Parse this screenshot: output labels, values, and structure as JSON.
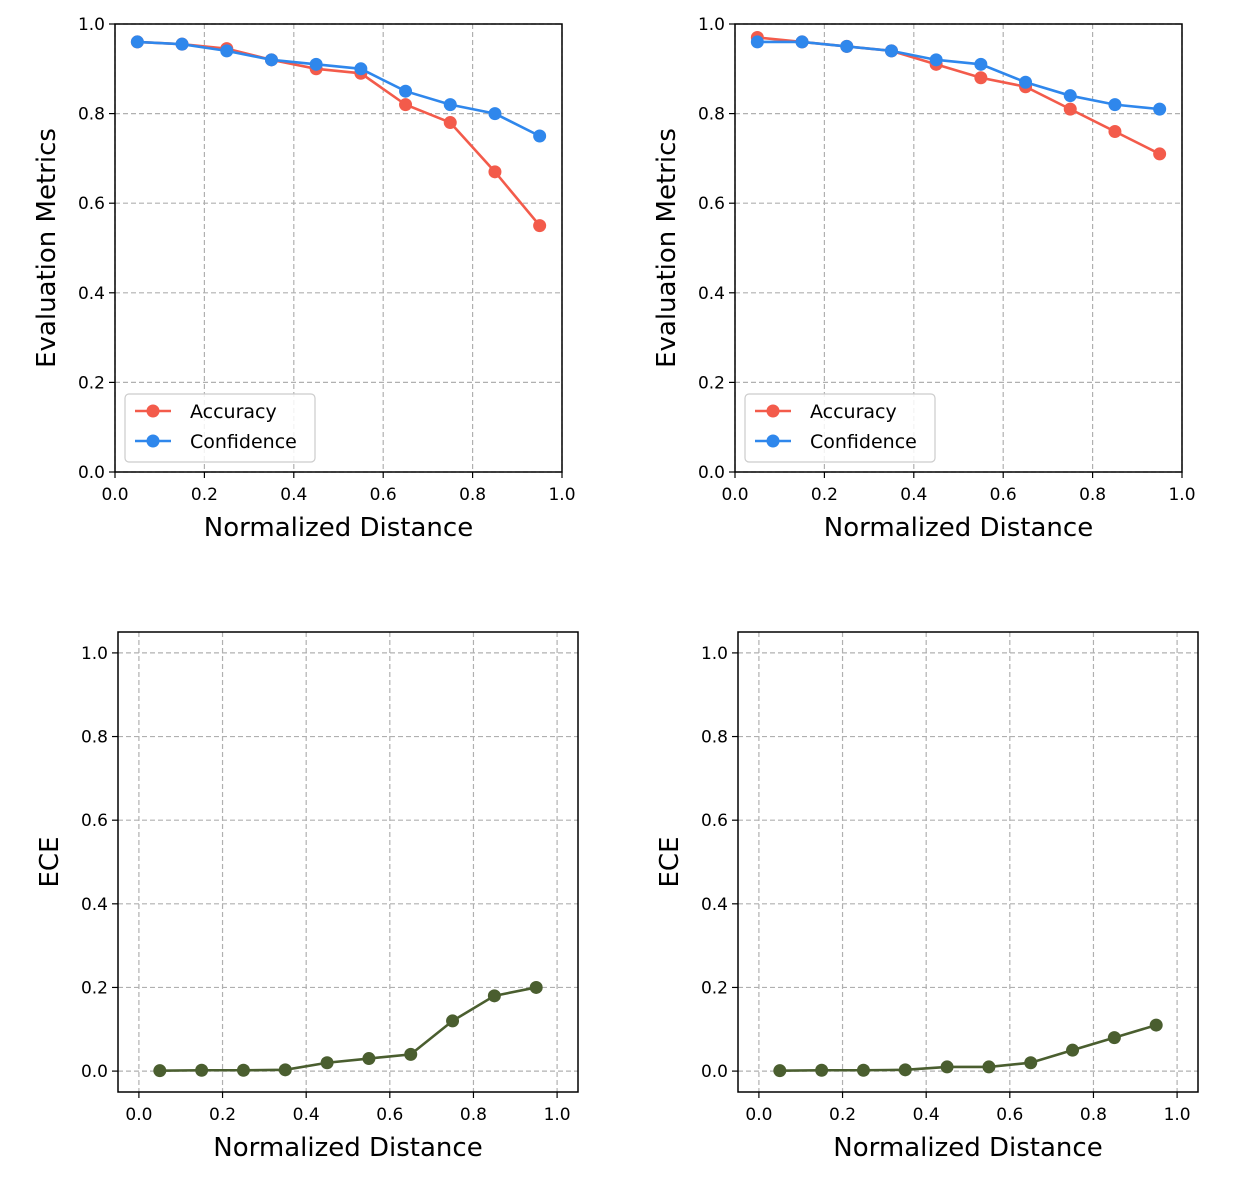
{
  "colors": {
    "accuracy": "#f35b4b",
    "confidence": "#2f87ec",
    "ece": "#4a5e2f",
    "grid": "#b0b0b0",
    "axis": "#000000"
  },
  "chart_data": [
    {
      "id": "top-left",
      "type": "line",
      "title": "",
      "xlabel": "Normalized Distance",
      "ylabel": "Evaluation Metrics",
      "xlim": [
        0.0,
        1.0
      ],
      "ylim": [
        0.0,
        1.0
      ],
      "xticks": [
        "0.0",
        "0.2",
        "0.4",
        "0.6",
        "0.8",
        "1.0"
      ],
      "yticks": [
        "0.0",
        "0.2",
        "0.4",
        "0.6",
        "0.8",
        "1.0"
      ],
      "grid": true,
      "legend_position": "lower-left",
      "x": [
        0.05,
        0.15,
        0.25,
        0.35,
        0.45,
        0.55,
        0.65,
        0.75,
        0.85,
        0.95
      ],
      "series": [
        {
          "name": "Accuracy",
          "color_key": "accuracy",
          "values": [
            0.96,
            0.955,
            0.945,
            0.92,
            0.9,
            0.89,
            0.82,
            0.78,
            0.67,
            0.55
          ]
        },
        {
          "name": "Confidence",
          "color_key": "confidence",
          "values": [
            0.96,
            0.955,
            0.94,
            0.92,
            0.91,
            0.9,
            0.85,
            0.82,
            0.8,
            0.75
          ]
        }
      ]
    },
    {
      "id": "top-right",
      "type": "line",
      "title": "",
      "xlabel": "Normalized Distance",
      "ylabel": "Evaluation Metrics",
      "xlim": [
        0.0,
        1.0
      ],
      "ylim": [
        0.0,
        1.0
      ],
      "xticks": [
        "0.0",
        "0.2",
        "0.4",
        "0.6",
        "0.8",
        "1.0"
      ],
      "yticks": [
        "0.0",
        "0.2",
        "0.4",
        "0.6",
        "0.8",
        "1.0"
      ],
      "grid": true,
      "legend_position": "lower-left",
      "x": [
        0.05,
        0.15,
        0.25,
        0.35,
        0.45,
        0.55,
        0.65,
        0.75,
        0.85,
        0.95
      ],
      "series": [
        {
          "name": "Accuracy",
          "color_key": "accuracy",
          "values": [
            0.97,
            0.96,
            0.95,
            0.94,
            0.91,
            0.88,
            0.86,
            0.81,
            0.76,
            0.71
          ]
        },
        {
          "name": "Confidence",
          "color_key": "confidence",
          "values": [
            0.96,
            0.96,
            0.95,
            0.94,
            0.92,
            0.91,
            0.87,
            0.84,
            0.82,
            0.81
          ]
        }
      ]
    },
    {
      "id": "bottom-left",
      "type": "line",
      "title": "",
      "xlabel": "Normalized Distance",
      "ylabel": "ECE",
      "xlim": [
        -0.05,
        1.05
      ],
      "ylim": [
        -0.05,
        1.05
      ],
      "xticks": [
        "0.0",
        "0.2",
        "0.4",
        "0.6",
        "0.8",
        "1.0"
      ],
      "yticks": [
        "0.0",
        "0.2",
        "0.4",
        "0.6",
        "0.8",
        "1.0"
      ],
      "grid": true,
      "legend_position": "none",
      "x": [
        0.05,
        0.15,
        0.25,
        0.35,
        0.45,
        0.55,
        0.65,
        0.75,
        0.85,
        0.95
      ],
      "series": [
        {
          "name": "",
          "color_key": "ece",
          "values": [
            0.001,
            0.002,
            0.002,
            0.003,
            0.02,
            0.03,
            0.04,
            0.12,
            0.18,
            0.2
          ]
        }
      ]
    },
    {
      "id": "bottom-right",
      "type": "line",
      "title": "",
      "xlabel": "Normalized Distance",
      "ylabel": "ECE",
      "xlim": [
        -0.05,
        1.05
      ],
      "ylim": [
        -0.05,
        1.05
      ],
      "xticks": [
        "0.0",
        "0.2",
        "0.4",
        "0.6",
        "0.8",
        "1.0"
      ],
      "yticks": [
        "0.0",
        "0.2",
        "0.4",
        "0.6",
        "0.8",
        "1.0"
      ],
      "grid": true,
      "legend_position": "none",
      "x": [
        0.05,
        0.15,
        0.25,
        0.35,
        0.45,
        0.55,
        0.65,
        0.75,
        0.85,
        0.95
      ],
      "series": [
        {
          "name": "",
          "color_key": "ece",
          "values": [
            0.001,
            0.002,
            0.002,
            0.003,
            0.01,
            0.01,
            0.02,
            0.05,
            0.08,
            0.11
          ]
        }
      ]
    }
  ]
}
